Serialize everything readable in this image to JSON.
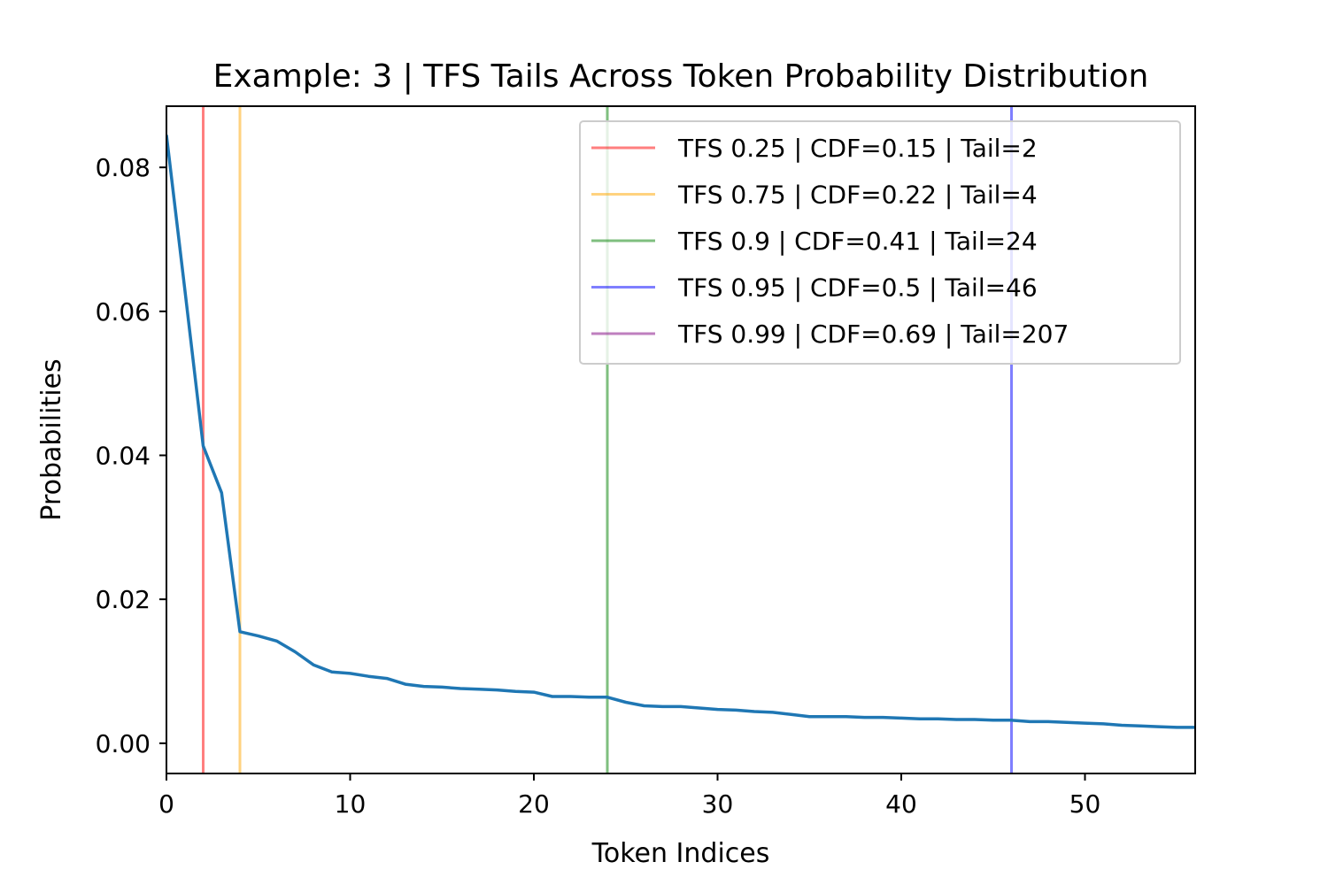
{
  "chart_data": {
    "type": "line",
    "title": "Example: 3 | TFS Tails Across Token Probability Distribution",
    "xlabel": "Token Indices",
    "ylabel": "Probabilities",
    "xlim": [
      0,
      56
    ],
    "ylim": [
      -0.0042,
      0.0885
    ],
    "xticks": [
      0,
      10,
      20,
      30,
      40,
      50
    ],
    "xtick_labels": [
      "0",
      "10",
      "20",
      "30",
      "40",
      "50"
    ],
    "yticks": [
      0.0,
      0.02,
      0.04,
      0.06,
      0.08
    ],
    "ytick_labels": [
      "0.00",
      "0.02",
      "0.04",
      "0.06",
      "0.08"
    ],
    "grid": false,
    "legend_position": "top-right",
    "series": [
      {
        "color": "#1f77b4",
        "x": [
          0,
          1,
          2,
          3,
          4,
          5,
          6,
          7,
          8,
          9,
          10,
          11,
          12,
          13,
          14,
          15,
          16,
          17,
          18,
          19,
          20,
          21,
          22,
          23,
          24,
          25,
          26,
          27,
          28,
          29,
          30,
          31,
          32,
          33,
          34,
          35,
          36,
          37,
          38,
          39,
          40,
          41,
          42,
          43,
          44,
          45,
          46,
          47,
          48,
          49,
          50,
          51,
          52,
          53,
          54,
          55,
          56
        ],
        "values": [
          0.0845,
          0.063,
          0.0413,
          0.0348,
          0.0155,
          0.0149,
          0.0142,
          0.0127,
          0.0109,
          0.0099,
          0.0097,
          0.0093,
          0.009,
          0.0082,
          0.0079,
          0.0078,
          0.0076,
          0.0075,
          0.0074,
          0.0072,
          0.0071,
          0.0065,
          0.0065,
          0.0064,
          0.0064,
          0.0057,
          0.0052,
          0.0051,
          0.0051,
          0.0049,
          0.0047,
          0.0046,
          0.0044,
          0.0043,
          0.004,
          0.0037,
          0.0037,
          0.0037,
          0.0036,
          0.0036,
          0.0035,
          0.0034,
          0.0034,
          0.0033,
          0.0033,
          0.0032,
          0.0032,
          0.003,
          0.003,
          0.0029,
          0.0028,
          0.0027,
          0.0025,
          0.0024,
          0.0023,
          0.0022,
          0.0022
        ]
      }
    ],
    "vlines": [
      {
        "label": "TFS 0.25 | CDF=0.15 | Tail=2",
        "x": 2,
        "color": "#ff0000"
      },
      {
        "label": "TFS 0.75 | CDF=0.22 | Tail=4",
        "x": 4,
        "color": "#ffa500"
      },
      {
        "label": "TFS 0.9 | CDF=0.41 | Tail=24",
        "x": 24,
        "color": "#008000"
      },
      {
        "label": "TFS 0.95 | CDF=0.5 | Tail=46",
        "x": 46,
        "color": "#0000ff"
      },
      {
        "label": "TFS 0.99 | CDF=0.69 | Tail=207",
        "x": 207,
        "color": "#800080"
      }
    ]
  }
}
